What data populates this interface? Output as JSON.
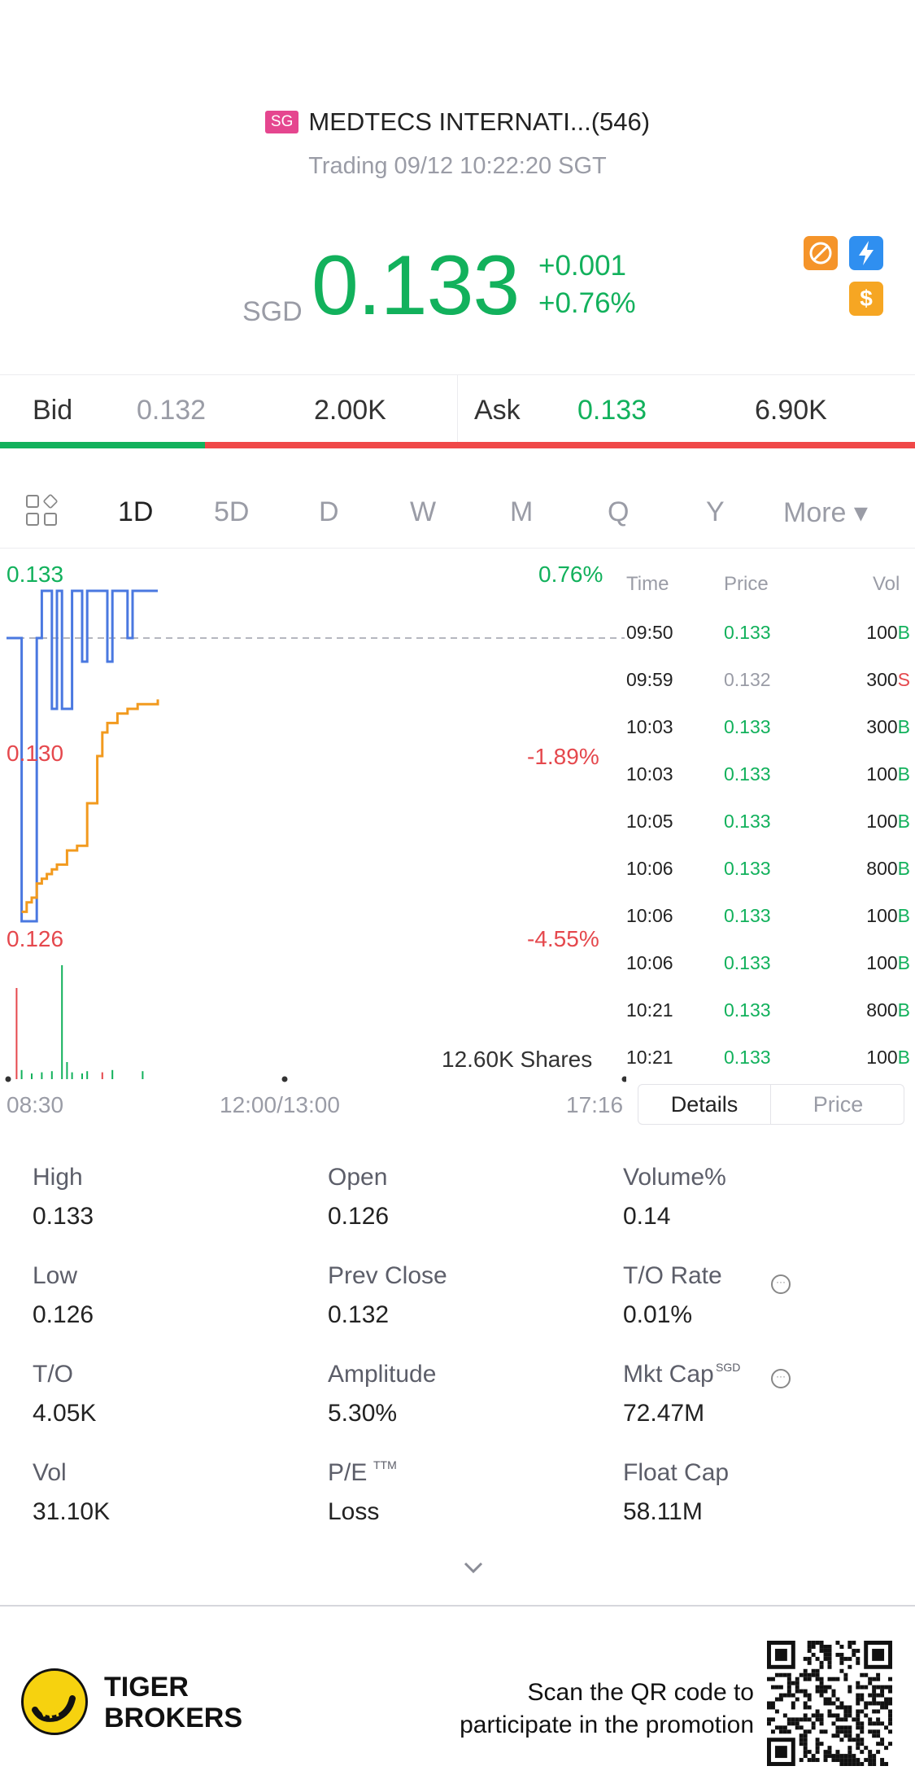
{
  "header": {
    "market_badge": "SG",
    "title": "MEDTECS INTERNATI...(546)",
    "subtitle": "Trading 09/12 10:22:20 SGT"
  },
  "quote": {
    "currency": "SGD",
    "price": "0.133",
    "change": "+0.001",
    "change_pct": "+0.76%",
    "icons": [
      "no-shorting-icon",
      "flash-icon",
      "dollar-icon"
    ],
    "up_color": "#12b15c",
    "down_color": "#e5484d"
  },
  "bid_ask": {
    "bid_label": "Bid",
    "bid_price": "0.132",
    "bid_size": "2.00K",
    "ask_label": "Ask",
    "ask_price": "0.133",
    "ask_size": "6.90K",
    "bid_ratio": 0.224
  },
  "tabs": {
    "items": [
      "1D",
      "5D",
      "D",
      "W",
      "M",
      "Q",
      "Y"
    ],
    "active": "1D",
    "more_label": "More ▾"
  },
  "chart_data": {
    "type": "line",
    "y_labels": [
      "0.133",
      "0.130",
      "0.126"
    ],
    "pct_labels": [
      "0.76%",
      "-1.89%",
      "-4.55%"
    ],
    "x_labels": [
      "08:30",
      "12:00/13:00",
      "17:16"
    ],
    "volume_label": "12.60K Shares",
    "prev_close": 0.132,
    "ylim": [
      0.126,
      0.133
    ],
    "series": [
      {
        "color": "#4a78e0",
        "x": [
          0,
          2,
          3,
          6,
          7,
          8,
          9,
          10,
          11,
          12,
          13,
          14,
          15,
          16,
          17,
          20,
          21,
          22,
          24,
          25,
          26,
          27,
          28,
          30
        ],
        "y": [
          0.132,
          0.132,
          0.126,
          0.132,
          0.133,
          0.133,
          0.1305,
          0.133,
          0.1305,
          0.1305,
          0.133,
          0.133,
          0.1315,
          0.133,
          0.133,
          0.1315,
          0.133,
          0.133,
          0.132,
          0.133,
          0.133,
          0.133,
          0.133,
          0.133
        ]
      },
      {
        "color": "#f29a1e",
        "x": [
          3,
          4,
          5,
          6,
          7,
          8,
          9,
          10,
          12,
          14,
          16,
          18,
          19,
          20,
          22,
          24,
          26,
          28,
          30
        ],
        "y": [
          0.1262,
          0.1264,
          0.1265,
          0.1268,
          0.1269,
          0.127,
          0.1271,
          0.1272,
          0.1275,
          0.1276,
          0.1285,
          0.1295,
          0.13,
          0.1302,
          0.1304,
          0.1305,
          0.1306,
          0.1306,
          0.1307
        ]
      }
    ],
    "volumes": [
      {
        "x": 2,
        "v": 0.8,
        "dir": "down"
      },
      {
        "x": 3,
        "v": 0.08,
        "dir": "up"
      },
      {
        "x": 5,
        "v": 0.05,
        "dir": "up"
      },
      {
        "x": 7,
        "v": 0.06,
        "dir": "up"
      },
      {
        "x": 9,
        "v": 0.07,
        "dir": "up"
      },
      {
        "x": 11,
        "v": 1.0,
        "dir": "up"
      },
      {
        "x": 12,
        "v": 0.15,
        "dir": "up"
      },
      {
        "x": 13,
        "v": 0.06,
        "dir": "up"
      },
      {
        "x": 15,
        "v": 0.05,
        "dir": "up"
      },
      {
        "x": 16,
        "v": 0.07,
        "dir": "up"
      },
      {
        "x": 19,
        "v": 0.06,
        "dir": "down"
      },
      {
        "x": 21,
        "v": 0.08,
        "dir": "up"
      },
      {
        "x": 27,
        "v": 0.07,
        "dir": "up"
      }
    ]
  },
  "trades": {
    "headers": [
      "Time",
      "Price",
      "Vol"
    ],
    "rows": [
      {
        "time": "09:50",
        "price": "0.133",
        "vol": "100",
        "side": "B"
      },
      {
        "time": "09:59",
        "price": "0.132",
        "vol": "300",
        "side": "S"
      },
      {
        "time": "10:03",
        "price": "0.133",
        "vol": "300",
        "side": "B"
      },
      {
        "time": "10:03",
        "price": "0.133",
        "vol": "100",
        "side": "B"
      },
      {
        "time": "10:05",
        "price": "0.133",
        "vol": "100",
        "side": "B"
      },
      {
        "time": "10:06",
        "price": "0.133",
        "vol": "800",
        "side": "B"
      },
      {
        "time": "10:06",
        "price": "0.133",
        "vol": "100",
        "side": "B"
      },
      {
        "time": "10:06",
        "price": "0.133",
        "vol": "100",
        "side": "B"
      },
      {
        "time": "10:21",
        "price": "0.133",
        "vol": "800",
        "side": "B"
      },
      {
        "time": "10:21",
        "price": "0.133",
        "vol": "100",
        "side": "B"
      }
    ],
    "tabs": [
      "Details",
      "Price"
    ],
    "active_tab": "Details"
  },
  "stats": [
    {
      "label": "High",
      "value": "0.133"
    },
    {
      "label": "Open",
      "value": "0.126"
    },
    {
      "label": "Volume%",
      "value": "0.14"
    },
    {
      "label": "Low",
      "value": "0.126"
    },
    {
      "label": "Prev Close",
      "value": "0.132"
    },
    {
      "label": "T/O Rate",
      "value": "0.01%"
    },
    {
      "label": "T/O",
      "value": "4.05K"
    },
    {
      "label": "Amplitude",
      "value": "5.30%"
    },
    {
      "label": "Mkt Cap",
      "value": "72.47M",
      "sup": "SGD"
    },
    {
      "label": "Vol",
      "value": "31.10K"
    },
    {
      "label": "P/E",
      "value": "Loss",
      "sup": "TTM"
    },
    {
      "label": "Float Cap",
      "value": "58.11M"
    }
  ],
  "footer": {
    "brand_line1": "TIGER",
    "brand_line2": "BROKERS",
    "promo_line1": "Scan the QR code to",
    "promo_line2": "participate in the promotion"
  }
}
